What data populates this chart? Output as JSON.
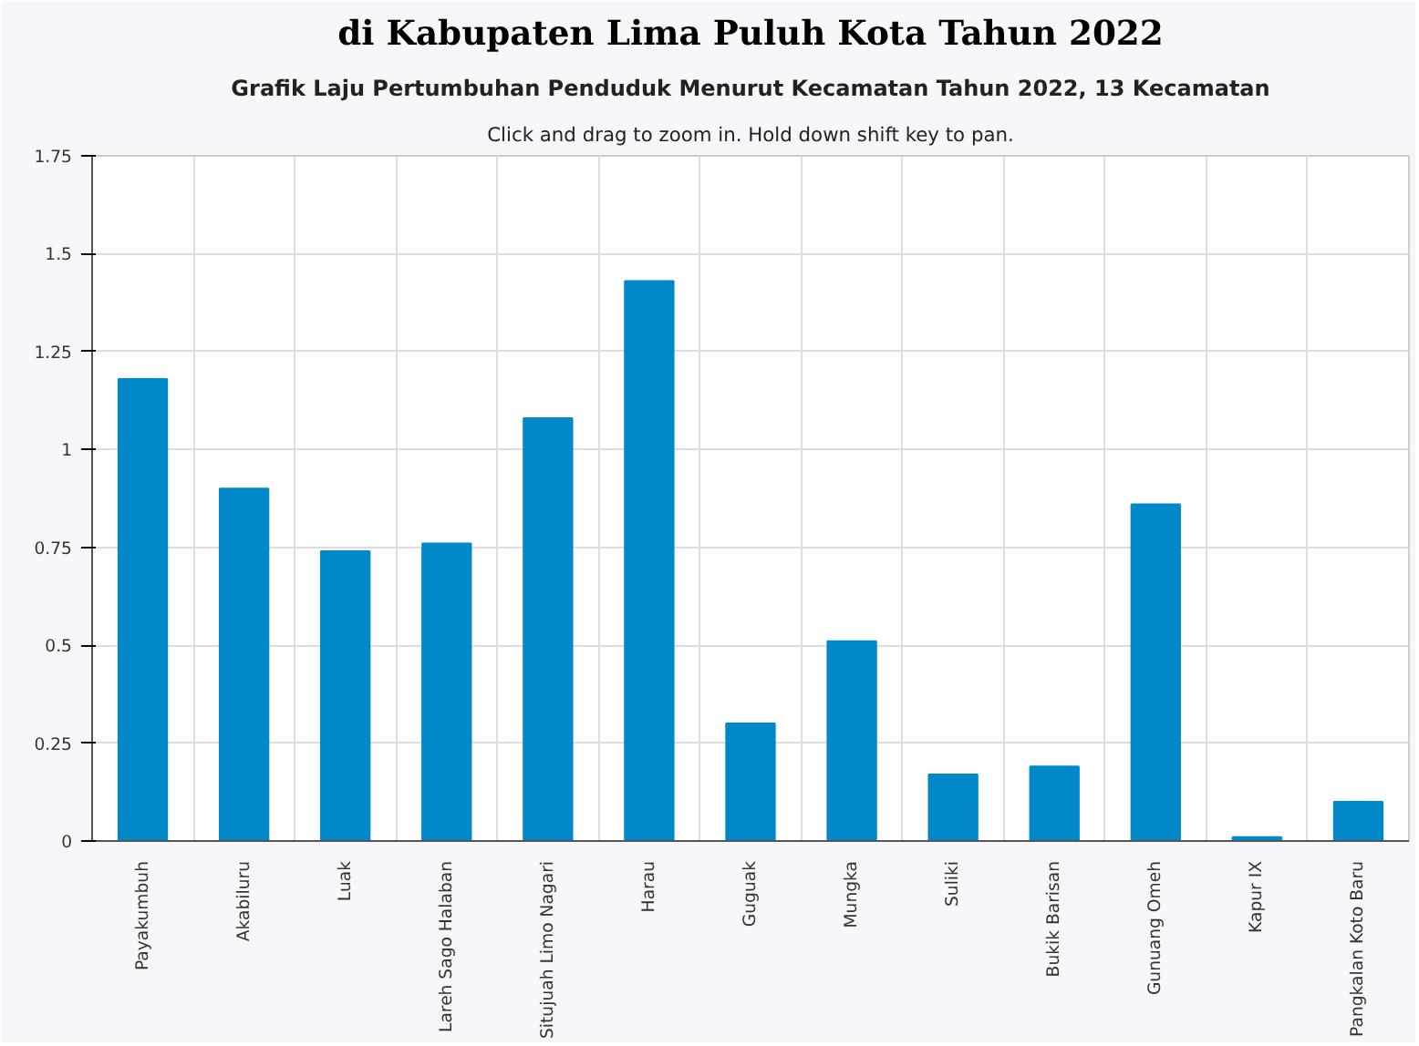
{
  "chart_data": {
    "type": "bar",
    "title": "Grafik Laju Pertumbuhan Penduduk Menurut Kecamatan Tahun 2022, 13 Kecamatan",
    "subtitle": "Click and drag to zoom in. Hold down shift key to pan.",
    "annotations": [
      "di Kabupaten Lima Puluh Kota Tahun 2022"
    ],
    "categories": [
      "Payakumbuh",
      "Akabiluru",
      "Luak",
      "Lareh Sago Halaban",
      "Situjuah Limo Nagari",
      "Harau",
      "Guguak",
      "Mungka",
      "Suliki",
      "Bukik Barisan",
      "Gunuang Omeh",
      "Kapur IX",
      "Pangkalan Koto Baru"
    ],
    "values": [
      1.18,
      0.9,
      0.74,
      0.76,
      1.08,
      1.43,
      0.3,
      0.51,
      0.17,
      0.19,
      0.86,
      0.01,
      0.1
    ],
    "color": "#0088c8",
    "ylim": [
      0,
      1.75
    ],
    "yticks": [
      0,
      0.25,
      0.5,
      {
        "value": 0.75,
        "label": "0.75"
      },
      1,
      1.25,
      1.5,
      1.75
    ],
    "grid": true
  }
}
